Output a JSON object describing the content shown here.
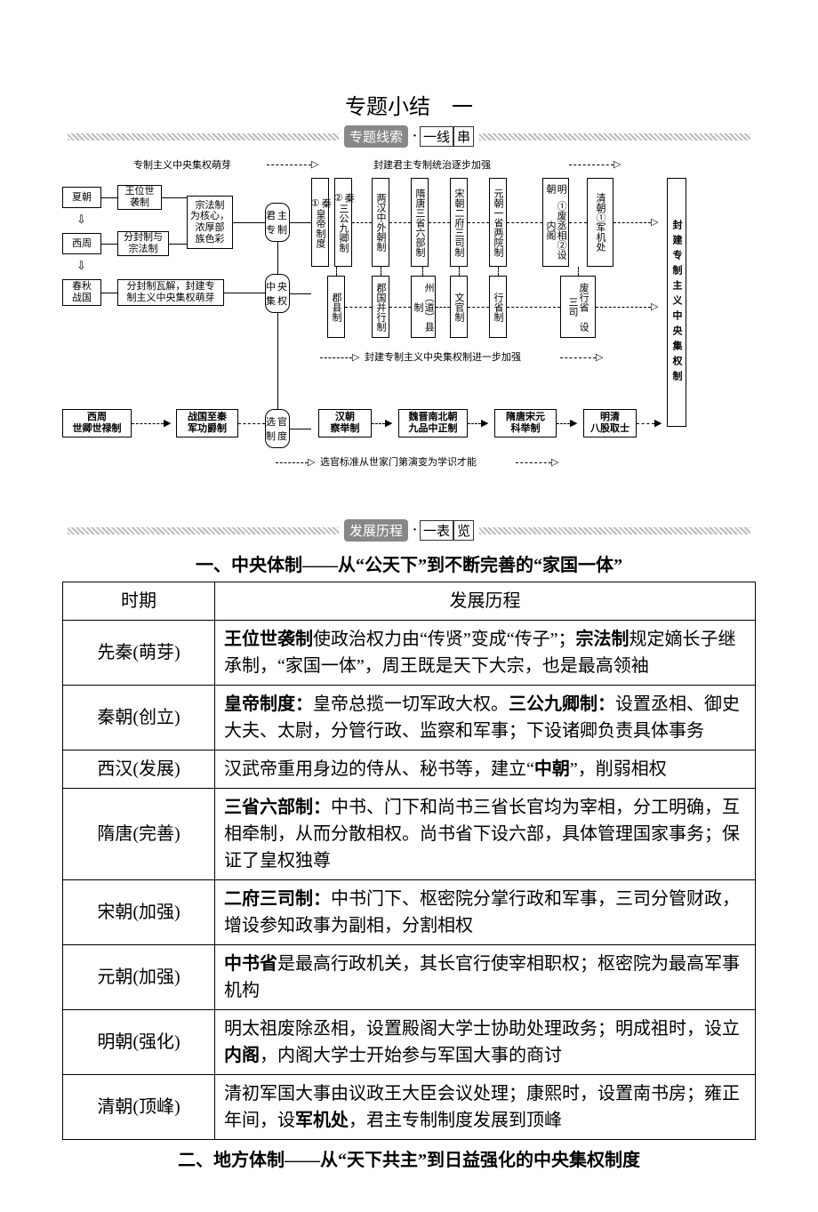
{
  "title": "专题小结　一",
  "banner1": {
    "pill": "专题线索",
    "sep": "·",
    "box1": "一线",
    "box2": "串"
  },
  "banner2": {
    "pill": "发展历程",
    "sep": "·",
    "box1": "一表",
    "box2": "览"
  },
  "diagram": {
    "top_left_label": "专制主义中央集权萌芽",
    "top_right_label": "封建君主专制统治逐步加强",
    "mid_caption": "封建专制主义中央集权制进一步加强",
    "bottom_caption": "选官标准从世家门第演变为学识才能",
    "xia": "夏朝",
    "xia_r": "王位世\n袭制",
    "xizhou": "西周",
    "xizhou_r": "分封制与\n宗法制",
    "chunqiu": "春秋\n战国",
    "chunqiu_r": "分封制瓦解，封建专\n制主义中央集权萌芽",
    "zongfa": "宗法制\n为核心，\n浓厚部\n族色彩",
    "junzhu": "君主\n专制",
    "zhongyang": "中央\n集权",
    "xuanguan": "选官\n制度",
    "right_big": "封建专制主义中央集权制",
    "qin1_h": "秦\n①",
    "qin1": "皇帝制度",
    "qin2_h": "秦\n②",
    "qin2": "三公九卿制",
    "lianhan_h": "两汉",
    "lianhan": "中外朝制",
    "suitang_h": "隋唐",
    "suitang": "三省六部制",
    "song_h": "宋朝",
    "song": "二府三司制",
    "yuan_h": "元朝",
    "yuan": "一省两院制",
    "ming_h": "明朝",
    "ming": "①废丞相②设内阁",
    "qing_h": "清朝",
    "qing": "①军机处",
    "local_qin": "郡县制",
    "local_han": "郡国并行制",
    "local_zhou": "州（道）县制",
    "local_wen": "文官制",
    "local_xing": "行省制",
    "local_ming": "废行省　设三司",
    "xg_xizhou": "西周\n世卿世禄制",
    "xg_zhan": "战国至秦\n军功爵制",
    "xg_han": "汉朝\n察举制",
    "xg_wei": "魏晋南北朝\n九品中正制",
    "xg_sui": "隋唐宋元\n科举制",
    "xg_ming": "明清\n八股取士"
  },
  "section1_heading": "一、中央体制——从“公天下”到不断完善的“家国一体”",
  "table1": {
    "head_period": "时期",
    "head_desc": "发展历程",
    "rows": [
      {
        "period": "先秦(萌芽)",
        "desc_parts": [
          "王位世袭制",
          "使政治权力由“传贤”变成“传子”；",
          "宗法制",
          "规定嫡长子继承制，“家国一体”，周王既是天下大宗，也是最高领袖"
        ]
      },
      {
        "period": "秦朝(创立)",
        "desc_parts": [
          "皇帝制度：",
          "皇帝总揽一切军政大权。",
          "三公九卿制：",
          "设置丞相、御史大夫、太尉，分管行政、监察和军事；下设诸卿负责具体事务"
        ]
      },
      {
        "period": "西汉(发展)",
        "desc_parts": [
          "",
          "汉武帝重用身边的侍从、秘书等，建立“",
          "中朝",
          "”，削弱相权"
        ]
      },
      {
        "period": "隋唐(完善)",
        "desc_parts": [
          "三省六部制：",
          "中书、门下和尚书三省长官均为宰相，分工明确，互相牵制，从而分散相权。尚书省下设六部，具体管理国家事务；保证了皇权独尊",
          "",
          ""
        ]
      },
      {
        "period": "宋朝(加强)",
        "desc_parts": [
          "二府三司制：",
          "中书门下、枢密院分掌行政和军事，三司分管财政，增设参知政事为副相，分割相权",
          "",
          ""
        ]
      },
      {
        "period": "元朝(加强)",
        "desc_parts": [
          "中书省",
          "是最高行政机关，其长官行使宰相职权；枢密院为最高军事机构",
          "",
          ""
        ]
      },
      {
        "period": "明朝(强化)",
        "desc_parts": [
          "",
          "明太祖废除丞相，设置殿阁大学士协助处理政务；明成祖时，设立",
          "内阁",
          "，内阁大学士开始参与军国大事的商讨"
        ]
      },
      {
        "period": "清朝(顶峰)",
        "desc_parts": [
          "",
          "清初军国大事由议政王大臣会议处理；康熙时，设置南书房；雍正年间，设",
          "军机处",
          "，君主专制制度发展到顶峰"
        ]
      }
    ]
  },
  "section2_heading": "二、地方体制——从“天下共主”到日益强化的中央集权制度"
}
